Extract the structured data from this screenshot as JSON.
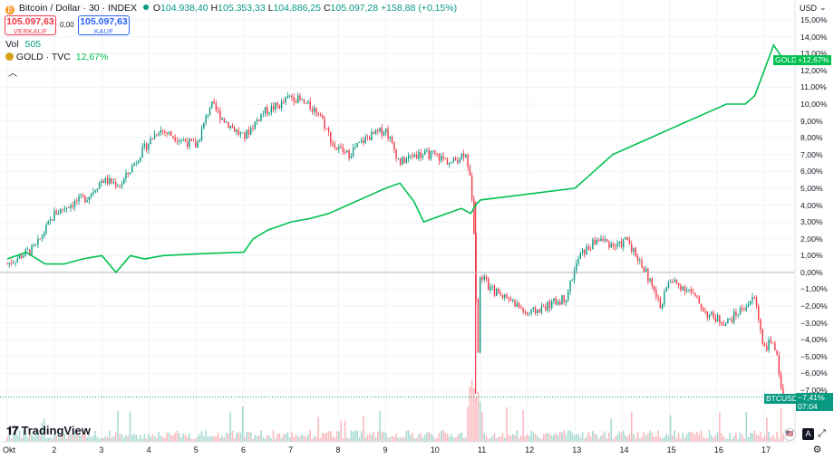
{
  "header": {
    "title": "Bitcoin / Dollar · 30 · INDEX",
    "o_label": "O",
    "o_value": "104.938,40",
    "h_label": "H",
    "h_value": "105.353,33",
    "l_label": "L",
    "l_value": "104.886,25",
    "c_label": "C",
    "c_value": "105.097,28",
    "change": "+158,88 (+0,15%)"
  },
  "trade": {
    "sell_price": "105.097,63",
    "sell_label": "VERKAUF",
    "spread": "0,00",
    "buy_price": "105.097,63",
    "buy_label": "KAUF"
  },
  "legend": {
    "vol_label": "Vol",
    "vol_value": "505",
    "gold_label": "GOLD · TVC",
    "gold_value": "12,67%"
  },
  "axis": {
    "currency": "USD",
    "y_ticks": [
      "15,00%",
      "14,00%",
      "13,00%",
      "12,00%",
      "11,00%",
      "10,00%",
      "9,00%",
      "8,00%",
      "7,00%",
      "6,00%",
      "5,00%",
      "4,00%",
      "3,00%",
      "2,00%",
      "1,00%",
      "0,00%",
      "−1,00%",
      "−2,00%",
      "−3,00%",
      "−4,00%",
      "−5,00%",
      "−6,00%",
      "−7,00%"
    ],
    "x_ticks": [
      "Okt",
      "2",
      "3",
      "4",
      "5",
      "6",
      "7",
      "8",
      "9",
      "10",
      "11",
      "12",
      "13",
      "14",
      "15",
      "16",
      "17"
    ]
  },
  "tags": {
    "gold_name": "GOLD",
    "gold_value": "+12,67%",
    "btc_name": "BTCUSD",
    "btc_value": "−7,41%",
    "btc_time": "07:04"
  },
  "brand": {
    "logo_text": "TradingView"
  },
  "colors": {
    "up": "#089981",
    "down": "#f23645",
    "gold": "#00c050",
    "zero_line": "#b2b5be"
  },
  "chart_data": {
    "type": "line",
    "x_unit": "day of October",
    "y_unit": "percent change",
    "series": [
      {
        "name": "BTCUSD",
        "x": [
          1.0,
          1.3,
          1.6,
          2.0,
          2.3,
          2.7,
          3.0,
          3.4,
          3.8,
          4.2,
          4.6,
          5.0,
          5.3,
          5.6,
          6.0,
          6.4,
          6.8,
          7.0,
          7.3,
          7.6,
          7.9,
          8.2,
          8.6,
          9.0,
          9.3,
          9.6,
          10.0,
          10.4,
          10.7,
          10.85,
          10.95,
          11.0,
          11.2,
          11.6,
          12.0,
          12.4,
          12.8,
          13.1,
          13.5,
          13.9,
          14.1,
          14.5,
          14.8,
          15.0,
          15.4,
          15.8,
          16.2,
          16.6,
          16.8,
          17.0,
          17.2,
          17.4
        ],
        "y": [
          0.5,
          1.0,
          1.5,
          3.5,
          4.0,
          4.5,
          5.5,
          5.2,
          7.0,
          8.5,
          8.0,
          7.5,
          10.0,
          9.0,
          8.0,
          9.5,
          10.0,
          10.5,
          10.0,
          9.5,
          7.5,
          7.0,
          8.0,
          8.5,
          6.5,
          7.0,
          7.0,
          6.5,
          7.2,
          4.0,
          -5.0,
          0.0,
          -1.0,
          -1.5,
          -2.5,
          -2.0,
          -1.5,
          1.0,
          2.0,
          1.5,
          2.0,
          0.0,
          -2.0,
          -0.5,
          -1.0,
          -2.5,
          -3.0,
          -2.0,
          -1.5,
          -4.5,
          -4.0,
          -7.41
        ]
      },
      {
        "name": "GOLD",
        "x": [
          1.0,
          1.4,
          1.8,
          2.2,
          2.6,
          3.0,
          3.3,
          3.6,
          3.9,
          4.3,
          5.0,
          6.0,
          6.2,
          6.5,
          7.0,
          7.4,
          7.8,
          8.2,
          8.6,
          9.0,
          9.3,
          9.6,
          9.8,
          10.0,
          10.3,
          10.6,
          10.8,
          10.9,
          11.0,
          13.0,
          13.4,
          13.8,
          14.2,
          14.6,
          15.0,
          15.4,
          15.8,
          16.2,
          16.6,
          16.8,
          17.0,
          17.2,
          17.4
        ],
        "y": [
          0.8,
          1.2,
          0.5,
          0.5,
          0.8,
          1.0,
          0.0,
          1.0,
          0.8,
          1.0,
          1.1,
          1.2,
          2.0,
          2.5,
          3.0,
          3.2,
          3.5,
          4.0,
          4.5,
          5.0,
          5.3,
          4.2,
          3.0,
          3.2,
          3.5,
          3.8,
          3.5,
          4.0,
          4.3,
          5.0,
          6.0,
          7.0,
          7.5,
          8.0,
          8.5,
          9.0,
          9.5,
          10.0,
          10.0,
          10.5,
          12.0,
          13.5,
          12.67
        ]
      }
    ],
    "ylim": [
      -7.5,
      15.5
    ],
    "xlim": [
      1.0,
      18.2
    ]
  }
}
